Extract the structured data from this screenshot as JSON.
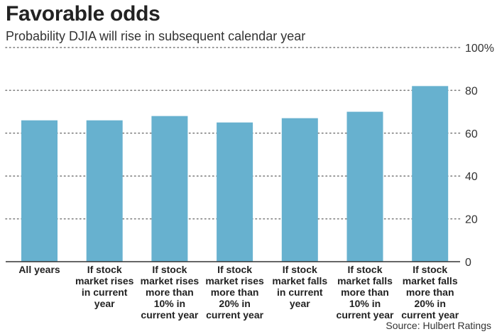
{
  "title": "Favorable odds",
  "subtitle": "Probability DJIA will rise in subsequent calendar year",
  "source": "Source: Hulbert Ratings",
  "colors": {
    "bar": "#67b1cf",
    "grid": "#777777",
    "axis": "#333333"
  },
  "chart_data": {
    "type": "bar",
    "title": "Favorable odds",
    "subtitle": "Probability DJIA will rise in subsequent calendar year",
    "categories": [
      "All years",
      "If stock market rises in current year",
      "If stock market rises more than 10% in current year",
      "If stock market rises more than 20% in current year",
      "If stock market falls in current year",
      "If stock market falls more than 10% in current year",
      "If stock market falls more than 20% in current year"
    ],
    "category_lines": [
      [
        "All years"
      ],
      [
        "If stock",
        "market rises",
        "in current",
        "year"
      ],
      [
        "If stock",
        "market rises",
        "more than",
        "10% in",
        "current year"
      ],
      [
        "If stock",
        "market rises",
        "more than",
        "20% in",
        "current year"
      ],
      [
        "If stock",
        "market falls",
        "in current",
        "year"
      ],
      [
        "If stock",
        "market falls",
        "more than",
        "10% in",
        "current year"
      ],
      [
        "If stock",
        "market falls",
        "more than",
        "20% in",
        "current year"
      ]
    ],
    "values": [
      66,
      66,
      68,
      65,
      67,
      70,
      82
    ],
    "ylim": [
      0,
      100
    ],
    "yticks": [
      0,
      20,
      40,
      60,
      80,
      100
    ],
    "ytick_labels": [
      "0",
      "20",
      "40",
      "60",
      "80",
      "100%"
    ],
    "grid": true,
    "xlabel": "",
    "ylabel": ""
  }
}
